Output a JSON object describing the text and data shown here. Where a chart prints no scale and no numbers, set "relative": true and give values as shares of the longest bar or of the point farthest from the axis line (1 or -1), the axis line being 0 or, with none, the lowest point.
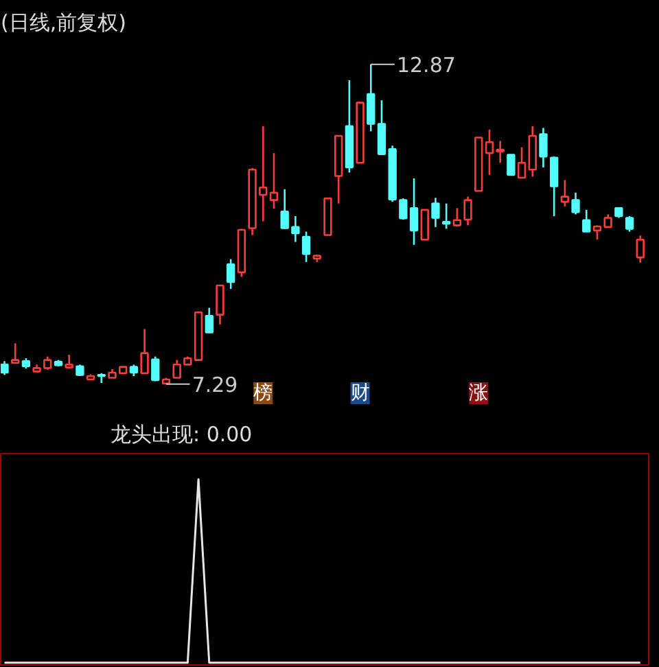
{
  "chart_data": [
    {
      "type": "candlestick",
      "title": "(日线,前复权)",
      "categories": [
        null,
        null,
        null,
        null,
        null,
        null,
        null,
        null,
        null,
        null,
        null,
        null,
        null,
        null,
        null,
        null,
        null,
        null,
        null,
        null,
        null,
        null,
        null,
        null,
        null,
        null,
        null,
        null,
        null,
        null,
        null,
        null,
        null,
        null,
        null,
        null,
        null,
        null,
        null,
        null,
        null,
        null,
        null,
        null,
        null,
        null,
        null,
        null,
        null,
        null,
        null,
        null,
        null,
        null,
        null,
        null,
        null,
        null,
        null,
        null
      ],
      "ohlc": [
        [
          7.63,
          7.69,
          7.45,
          7.49
        ],
        [
          7.66,
          8.0,
          7.66,
          7.71
        ],
        [
          7.69,
          7.74,
          7.56,
          7.6
        ],
        [
          7.51,
          7.63,
          7.51,
          7.57
        ],
        [
          7.57,
          7.77,
          7.54,
          7.71
        ],
        [
          7.68,
          7.71,
          7.6,
          7.62
        ],
        [
          7.58,
          7.8,
          7.56,
          7.63
        ],
        [
          7.6,
          7.63,
          7.43,
          7.45
        ],
        [
          7.37,
          7.46,
          7.37,
          7.43
        ],
        [
          7.45,
          7.48,
          7.31,
          7.43
        ],
        [
          7.4,
          7.55,
          7.4,
          7.49
        ],
        [
          7.48,
          7.6,
          7.48,
          7.59
        ],
        [
          7.59,
          7.63,
          7.43,
          7.49
        ],
        [
          7.48,
          8.25,
          7.48,
          7.83
        ],
        [
          7.72,
          7.77,
          7.34,
          7.36
        ],
        [
          7.3,
          7.4,
          7.29,
          7.37
        ],
        [
          7.4,
          7.71,
          7.4,
          7.63
        ],
        [
          7.63,
          7.77,
          7.62,
          7.74
        ],
        [
          7.71,
          8.56,
          7.71,
          8.54
        ],
        [
          8.48,
          8.62,
          8.18,
          8.19
        ],
        [
          8.5,
          9.01,
          8.33,
          9.01
        ],
        [
          9.38,
          9.47,
          8.95,
          9.07
        ],
        [
          9.24,
          10.0,
          9.16,
          9.98
        ],
        [
          10.01,
          11.06,
          9.89,
          11.03
        ],
        [
          10.59,
          11.79,
          10.13,
          10.72
        ],
        [
          10.5,
          11.32,
          10.35,
          10.63
        ],
        [
          10.3,
          10.69,
          10.0,
          10.01
        ],
        [
          10.03,
          10.22,
          9.77,
          9.92
        ],
        [
          9.86,
          9.95,
          9.42,
          9.56
        ],
        [
          9.48,
          9.53,
          9.42,
          9.53
        ],
        [
          9.89,
          10.53,
          9.89,
          10.53
        ],
        [
          10.92,
          11.62,
          10.44,
          11.62
        ],
        [
          11.79,
          12.59,
          10.98,
          11.07
        ],
        [
          11.15,
          12.2,
          11.15,
          12.2
        ],
        [
          12.35,
          12.87,
          11.7,
          11.83
        ],
        [
          11.83,
          12.24,
          11.29,
          11.3
        ],
        [
          11.39,
          11.45,
          10.47,
          10.51
        ],
        [
          10.5,
          10.53,
          10.16,
          10.18
        ],
        [
          10.36,
          10.88,
          9.72,
          9.97
        ],
        [
          9.81,
          10.33,
          9.81,
          10.33
        ],
        [
          10.44,
          10.54,
          10.03,
          10.19
        ],
        [
          10.12,
          10.44,
          10.0,
          10.09
        ],
        [
          10.06,
          10.36,
          10.04,
          10.15
        ],
        [
          10.16,
          10.56,
          10.06,
          10.5
        ],
        [
          10.66,
          11.59,
          10.66,
          11.59
        ],
        [
          11.32,
          11.73,
          10.94,
          11.51
        ],
        [
          11.35,
          11.53,
          11.15,
          11.38
        ],
        [
          11.29,
          11.29,
          10.94,
          10.94
        ],
        [
          10.89,
          11.42,
          10.88,
          11.15
        ],
        [
          11.03,
          11.79,
          10.91,
          11.62
        ],
        [
          11.65,
          11.76,
          11.07,
          11.26
        ],
        [
          11.24,
          11.26,
          10.22,
          10.74
        ],
        [
          10.47,
          10.85,
          10.39,
          10.56
        ],
        [
          10.5,
          10.63,
          10.25,
          10.29
        ],
        [
          10.15,
          10.33,
          9.95,
          9.95
        ],
        [
          9.97,
          10.06,
          9.81,
          10.04
        ],
        [
          10.03,
          10.25,
          10.03,
          10.19
        ],
        [
          10.36,
          10.36,
          10.19,
          10.22
        ],
        [
          10.19,
          10.22,
          9.95,
          10.0
        ],
        [
          9.5,
          9.88,
          9.41,
          9.81
        ]
      ],
      "colors": [
        "#54fcfc",
        "#ff3c3c",
        "#54fcfc",
        "#ff3c3c",
        "#ff3c3c",
        "#54fcfc",
        "#ff3c3c",
        "#54fcfc",
        "#ff3c3c",
        "#54fcfc",
        "#ff3c3c",
        "#ff3c3c",
        "#54fcfc",
        "#ff3c3c",
        "#54fcfc",
        "#ff3c3c",
        "#ff3c3c",
        "#ff3c3c",
        "#ff3c3c",
        "#54fcfc",
        "#ff3c3c",
        "#54fcfc",
        "#ff3c3c",
        "#ff3c3c",
        "#ff3c3c",
        "#ff3c3c",
        "#54fcfc",
        "#54fcfc",
        "#54fcfc",
        "#ff3c3c",
        "#ff3c3c",
        "#ff3c3c",
        "#54fcfc",
        "#ff3c3c",
        "#54fcfc",
        "#54fcfc",
        "#54fcfc",
        "#54fcfc",
        "#54fcfc",
        "#ff3c3c",
        "#54fcfc",
        "#54fcfc",
        "#ff3c3c",
        "#ff3c3c",
        "#ff3c3c",
        "#ff3c3c",
        "#ff3c3c",
        "#54fcfc",
        "#ff3c3c",
        "#ff3c3c",
        "#54fcfc",
        "#54fcfc",
        "#ff3c3c",
        "#54fcfc",
        "#54fcfc",
        "#ff3c3c",
        "#ff3c3c",
        "#54fcfc",
        "#54fcfc",
        "#ff3c3c"
      ],
      "tick_labels": false,
      "annotations": [
        "12.87",
        "7.29",
        "榜",
        "财",
        "涨"
      ]
    },
    {
      "type": "line",
      "title": "龙头出现: 0.00",
      "categories": [
        null,
        null,
        null,
        null,
        null,
        null,
        null,
        null,
        null,
        null,
        null,
        null,
        null,
        null,
        null,
        null,
        null,
        null,
        null,
        null,
        null,
        null,
        null,
        null,
        null,
        null,
        null,
        null,
        null,
        null,
        null,
        null,
        null,
        null,
        null,
        null,
        null,
        null,
        null,
        null,
        null,
        null,
        null,
        null,
        null,
        null,
        null,
        null,
        null,
        null,
        null,
        null,
        null,
        null,
        null,
        null,
        null,
        null,
        null,
        null
      ],
      "series": [
        {
          "color": "#e6e6e6",
          "values": [
            0,
            0,
            0,
            0,
            0,
            0,
            0,
            0,
            0,
            0,
            0,
            0,
            0,
            0,
            0,
            0,
            0,
            0,
            1,
            0,
            0,
            0,
            0,
            0,
            0,
            0,
            0,
            0,
            0,
            0,
            0,
            0,
            0,
            0,
            0,
            0,
            0,
            0,
            0,
            0,
            0,
            0,
            0,
            0,
            0,
            0,
            0,
            0,
            0,
            0,
            0,
            0,
            0,
            0,
            0,
            0,
            0,
            0,
            0,
            0
          ]
        }
      ],
      "relative": true,
      "tick_labels": false
    }
  ]
}
